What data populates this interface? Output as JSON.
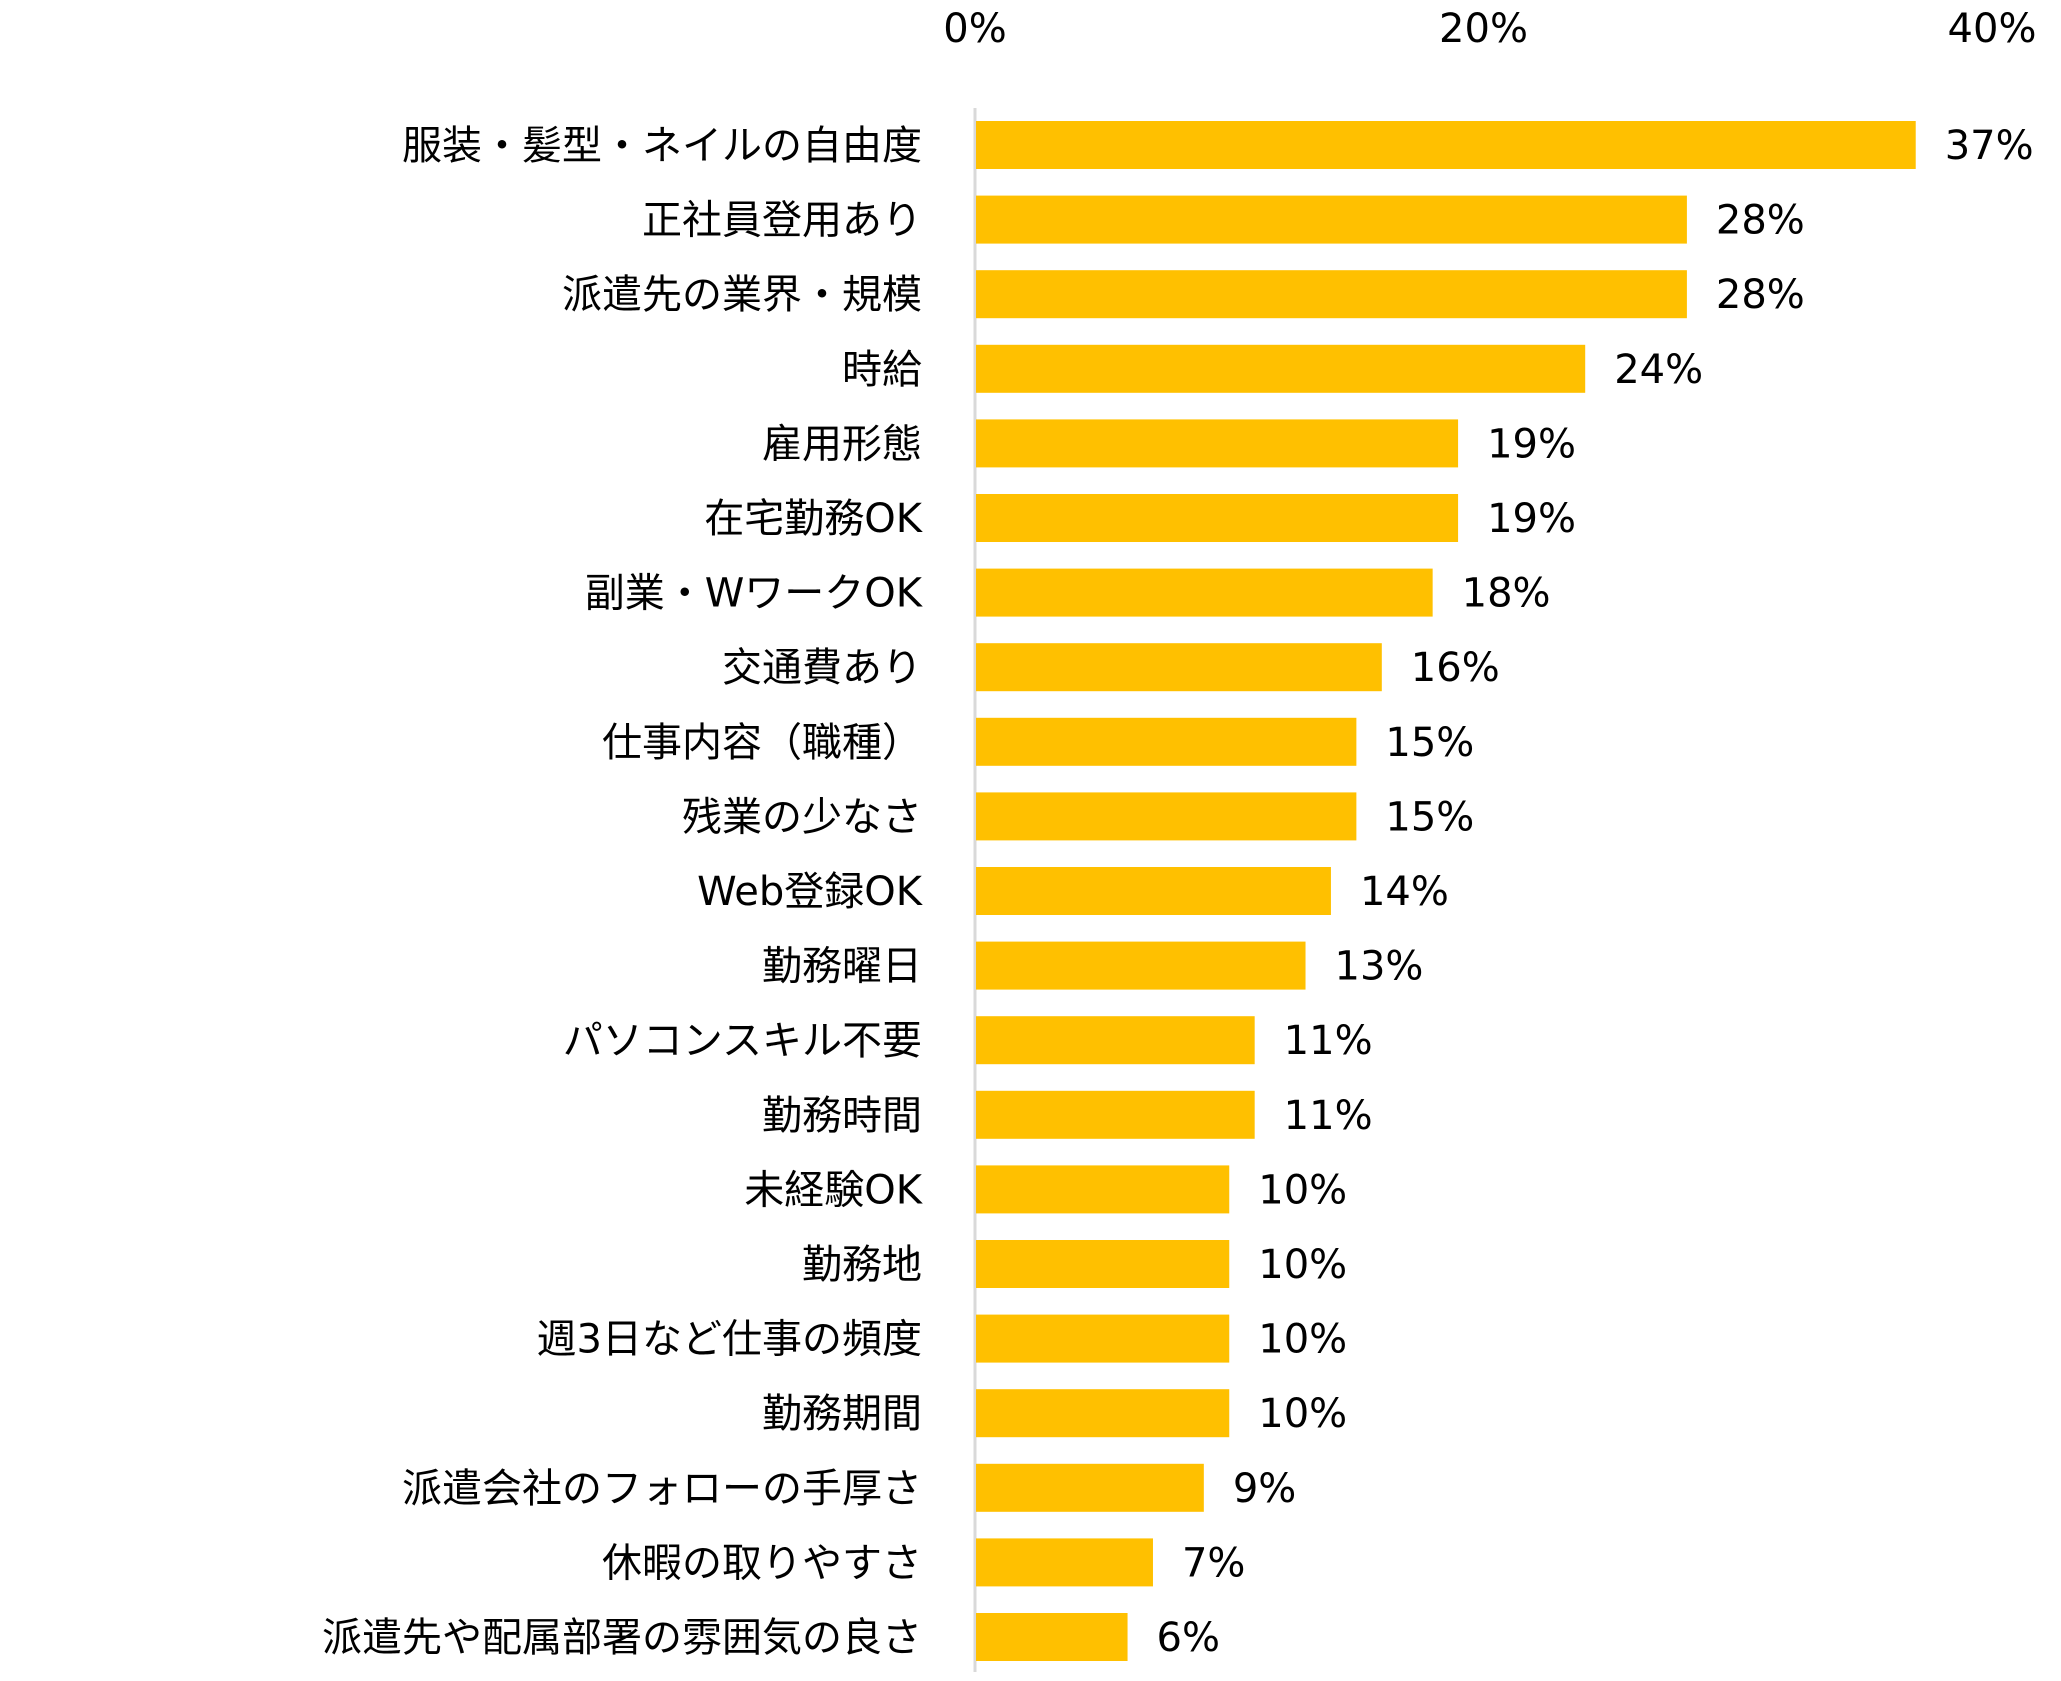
{
  "chart_data": {
    "type": "bar",
    "orientation": "horizontal",
    "categories": [
      "服装・髪型・ネイルの自由度",
      "正社員登用あり",
      "派遣先の業界・規模",
      "時給",
      "雇用形態",
      "在宅勤務OK",
      "副業・WワークOK",
      "交通費あり",
      "仕事内容（職種）",
      "残業の少なさ",
      "Web登録OK",
      "勤務曜日",
      "パソコンスキル不要",
      "勤務時間",
      "未経験OK",
      "勤務地",
      "週3日など仕事の頻度",
      "勤務期間",
      "派遣会社のフォローの手厚さ",
      "休暇の取りやすさ",
      "派遣先や配属部署の雰囲気の良さ"
    ],
    "values": [
      37,
      28,
      28,
      24,
      19,
      19,
      18,
      16,
      15,
      15,
      14,
      13,
      11,
      11,
      10,
      10,
      10,
      10,
      9,
      7,
      6
    ],
    "data_labels": [
      "37%",
      "28%",
      "28%",
      "24%",
      "19%",
      "19%",
      "18%",
      "16%",
      "15%",
      "15%",
      "14%",
      "13%",
      "11%",
      "11%",
      "10%",
      "10%",
      "10%",
      "10%",
      "9%",
      "7%",
      "6%"
    ],
    "xlim": [
      0,
      40
    ],
    "x_ticks": [
      0,
      20,
      40
    ],
    "x_tick_labels": [
      "0%",
      "20%",
      "40%"
    ],
    "x_axis_position": "top",
    "grid": false,
    "bar_color": "#FFC000",
    "title": "",
    "xlabel": "",
    "ylabel": ""
  }
}
